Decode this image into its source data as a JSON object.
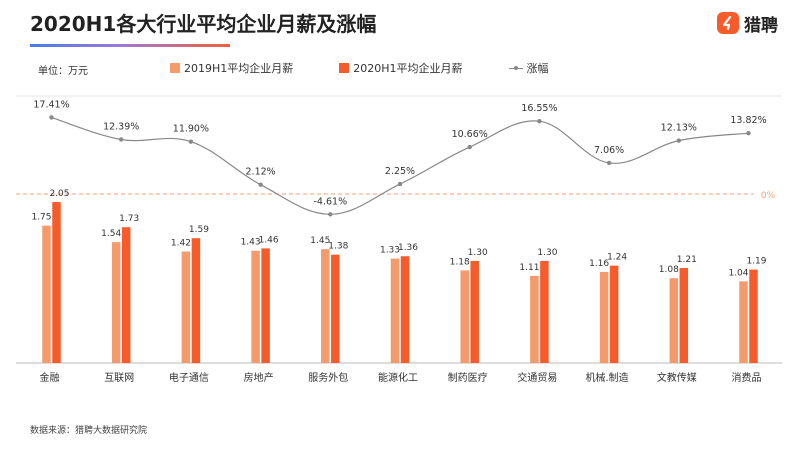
{
  "header": {
    "title": "2020H1各大行业平均企业月薪及涨幅",
    "logo_text": "猎聘",
    "logo_icon": "orange-square-logo-icon",
    "unit": "单位：万元",
    "source": "数据来源：猎聘大数据研究院"
  },
  "colors": {
    "series_2019": "#f59a6b",
    "series_2020": "#f65b2b",
    "growth_line": "#888888",
    "zero_line": "#f4a07a",
    "axis": "#bbbbbb"
  },
  "chart_data": {
    "type": "bar",
    "title": "2020H1各大行业平均企业月薪及涨幅",
    "categories": [
      "金融",
      "互联网",
      "电子通信",
      "房地产",
      "服务外包",
      "能源化工",
      "制药医疗",
      "交通贸易",
      "机械.制造",
      "文教传媒",
      "消费品"
    ],
    "series": [
      {
        "name": "2019H1平均企业月薪",
        "type": "bar",
        "values": [
          1.75,
          1.54,
          1.42,
          1.43,
          1.45,
          1.33,
          1.18,
          1.11,
          1.16,
          1.08,
          1.04
        ]
      },
      {
        "name": "2020H1平均企业月薪",
        "type": "bar",
        "values": [
          2.05,
          1.73,
          1.59,
          1.46,
          1.38,
          1.36,
          1.3,
          1.3,
          1.24,
          1.21,
          1.19
        ]
      },
      {
        "name": "涨幅",
        "type": "line",
        "values": [
          17.41,
          12.39,
          11.9,
          2.12,
          -4.61,
          2.25,
          10.66,
          16.55,
          7.06,
          12.13,
          13.82
        ],
        "labels": [
          "17.41%",
          "12.39%",
          "11.90%",
          "2.12%",
          "-4.61%",
          "2.25%",
          "10.66%",
          "16.55%",
          "7.06%",
          "12.13%",
          "13.82%"
        ]
      }
    ],
    "bar_value_labels": {
      "2019": [
        "1.75",
        "1.54",
        "1.42",
        "1.43",
        "1.45",
        "1.33",
        "1.18",
        "1.11",
        "1.16",
        "1.08",
        "1.04"
      ],
      "2020": [
        "2.05",
        "1.73",
        "1.59",
        "1.46",
        "1.38",
        "1.36",
        "1.30",
        "1.30",
        "1.24",
        "1.21",
        "1.19"
      ]
    },
    "zero_label": "0%",
    "ylabel": "万元",
    "grid": false,
    "legend_position": "top"
  }
}
